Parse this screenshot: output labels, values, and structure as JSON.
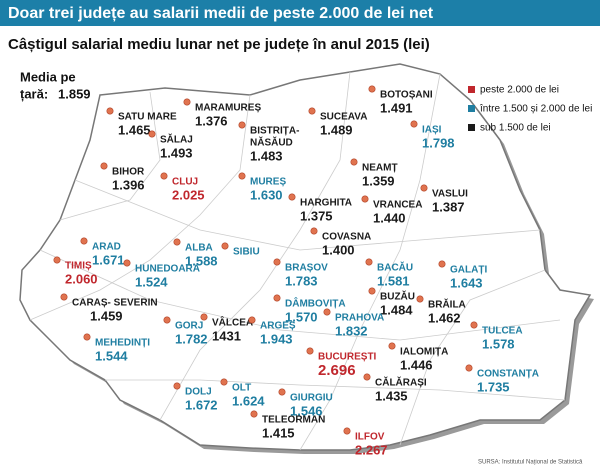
{
  "header": {
    "title": "Doar trei județe au salarii medii de peste 2.000 de lei net",
    "subtitle": "Câștigul salarial mediu lunar net pe județe în anul 2015 (lei)"
  },
  "national_average": {
    "label": [
      "Media pe",
      "țară:"
    ],
    "value": "1.859"
  },
  "legend": [
    {
      "label": "peste 2.000 de lei",
      "color": "#c0272d"
    },
    {
      "label": "între 1.500 și 2.000 de lei",
      "color": "#1f7ea1"
    },
    {
      "label": "sub 1.500 de lei",
      "color": "#1a1a1a"
    }
  ],
  "counties": [
    {
      "name": "SATU MARE",
      "value": "1.465",
      "color": "#1a1a1a"
    },
    {
      "name": "MARAMUREȘ",
      "value": "1.376",
      "color": "#1a1a1a"
    },
    {
      "name": "SĂLAJ",
      "value": "1.493",
      "color": "#1a1a1a"
    },
    {
      "name": [
        "BISTRIȚA-",
        "NĂSĂUD"
      ],
      "value": "1.483",
      "color": "#1a1a1a"
    },
    {
      "name": "BOTOȘANI",
      "value": "1.491",
      "color": "#1a1a1a"
    },
    {
      "name": "SUCEAVA",
      "value": "1.489",
      "color": "#1a1a1a"
    },
    {
      "name": "IAȘI",
      "value": "1.798",
      "color": "#1f7ea1"
    },
    {
      "name": "NEAMȚ",
      "value": "1.359",
      "color": "#1a1a1a"
    },
    {
      "name": "BIHOR",
      "value": "1.396",
      "color": "#1a1a1a"
    },
    {
      "name": "CLUJ",
      "value": "2.025",
      "color": "#c0272d"
    },
    {
      "name": "MUREȘ",
      "value": "1.630",
      "color": "#1f7ea1"
    },
    {
      "name": "HARGHITA",
      "value": "1.375",
      "color": "#1a1a1a"
    },
    {
      "name": "VRANCEA",
      "value": "1.440",
      "color": "#1a1a1a"
    },
    {
      "name": "VASLUI",
      "value": "1.387",
      "color": "#1a1a1a"
    },
    {
      "name": "ARAD",
      "value": "1.671",
      "color": "#1f7ea1"
    },
    {
      "name": "ALBA",
      "value": "1.588",
      "color": "#1f7ea1"
    },
    {
      "name": "SIBIU",
      "color": "#1f7ea1"
    },
    {
      "name": "COVASNA",
      "value": "1.400",
      "color": "#1a1a1a"
    },
    {
      "name": "TIMIȘ",
      "value": "2.060",
      "color": "#c0272d"
    },
    {
      "name": "HUNEDOARA",
      "value": "1.524",
      "color": "#1f7ea1"
    },
    {
      "name": "BRAȘOV",
      "value": "1.783",
      "color": "#1f7ea1"
    },
    {
      "name": "BACĂU",
      "value": "1.581",
      "color": "#1f7ea1"
    },
    {
      "name": "GALAȚI",
      "value": "1.643",
      "color": "#1f7ea1"
    },
    {
      "name": [
        "CARAȘ- SEVERIN"
      ],
      "value": "1.459",
      "color": "#1a1a1a"
    },
    {
      "name": "DÂMBOVIȚA",
      "value": "1.570",
      "color": "#1f7ea1"
    },
    {
      "name": "BUZĂU",
      "value": "1.484",
      "color": "#1a1a1a"
    },
    {
      "name": "BRĂILA",
      "value": "1.462",
      "color": "#1a1a1a"
    },
    {
      "name": "PRAHOVA",
      "value": "1.832",
      "color": "#1f7ea1"
    },
    {
      "name": "GORJ",
      "value": "1.782",
      "color": "#1f7ea1"
    },
    {
      "name": "VÂLCEA",
      "value": "1431",
      "color": "#1a1a1a"
    },
    {
      "name": "ARGEȘ",
      "value": "1.943",
      "color": "#1f7ea1"
    },
    {
      "name": "MEHEDINȚI",
      "value": "1.544",
      "color": "#1f7ea1"
    },
    {
      "name": "TULCEA",
      "value": "1.578",
      "color": "#1f7ea1"
    },
    {
      "name": "BUCUREȘTI",
      "value": "2.696",
      "color": "#c0272d"
    },
    {
      "name": "IALOMIȚA",
      "value": "1.446",
      "color": "#1a1a1a"
    },
    {
      "name": "CONSTANȚA",
      "value": "1.735",
      "color": "#1f7ea1"
    },
    {
      "name": "DOLJ",
      "value": "1.672",
      "color": "#1f7ea1"
    },
    {
      "name": "OLT",
      "value": "1.624",
      "color": "#1f7ea1"
    },
    {
      "name": "GIURGIU",
      "value": "1.546",
      "color": "#1f7ea1"
    },
    {
      "name": "CĂLĂRAȘI",
      "value": "1.435",
      "color": "#1a1a1a"
    },
    {
      "name": "TELEORMAN",
      "value": "1.415",
      "color": "#1a1a1a"
    },
    {
      "name": "ILFOV",
      "value": "2.267",
      "color": "#c0272d"
    }
  ],
  "source": "SURSA: Institutul Național de Statistică"
}
